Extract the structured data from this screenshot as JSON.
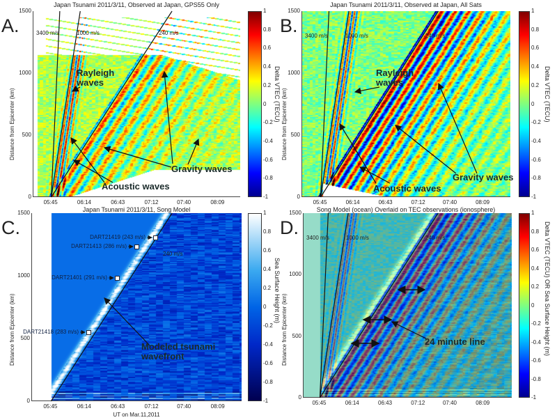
{
  "figure": {
    "chart_data": [
      {
        "type": "heatmap",
        "letter": "A.",
        "title": "Japan Tsunami 2011/3/11, Observed at Japan, GPS55 Only",
        "xlabel": "",
        "ylabel": "Distance from Epicenter (km)",
        "x_ticks": [
          "05:45",
          "06:14",
          "06:43",
          "07:12",
          "07:40",
          "08:09"
        ],
        "xlim": [
          "05:29",
          "08:28"
        ],
        "y_ticks": [
          0,
          500,
          1000,
          1500
        ],
        "ylim": [
          0,
          1500
        ],
        "colorbar": {
          "label": "Delta VTEC (TECU)",
          "colormap": "jet",
          "range": [
            -1,
            1
          ],
          "ticks": [
            "1",
            "0.8",
            "0.6",
            "0.4",
            "0.2",
            "0",
            "-0.2",
            "-0.4",
            "-0.6",
            "-0.8",
            "-1"
          ]
        },
        "velocity_lines": [
          "3400 m/s",
          "1000 m/s",
          "240 m/s"
        ],
        "annotations": [
          "Rayleigh\nwaves",
          "Acoustic waves",
          "Gravity waves"
        ]
      },
      {
        "type": "heatmap",
        "letter": "B.",
        "title": "Japan Tsunami 2011/3/11, Observed at Japan, All Sats",
        "xlabel": "",
        "ylabel": "Distance from Epicenter (km)",
        "x_ticks": [
          "05:45",
          "06:14",
          "06:43",
          "07:12",
          "07:40",
          "08:09"
        ],
        "xlim": [
          "05:28",
          "08:33"
        ],
        "y_ticks": [
          0,
          500,
          1000,
          1500
        ],
        "ylim": [
          0,
          1500
        ],
        "colorbar": {
          "label": "Delta VTEC (TECU)",
          "colormap": "jet",
          "range": [
            -1,
            1
          ],
          "ticks": [
            "1",
            "0.8",
            "0.6",
            "0.4",
            "0.2",
            "0",
            "-0.2",
            "-0.4",
            "-0.6",
            "-0.8",
            "-1"
          ]
        },
        "velocity_lines": [
          "3400 m/s",
          "1000 m/s",
          "240 m/s"
        ],
        "annotations": [
          "Rayleigh\nwaves",
          "Acoustic waves",
          "Gravity waves"
        ]
      },
      {
        "type": "heatmap",
        "letter": "C.",
        "title": "Japan Tsunami 2011/3/11, Song Model",
        "xlabel": "UT on Mar.11,2011",
        "ylabel": "Distance from Epicenter (km)",
        "x_ticks": [
          "05:45",
          "06:14",
          "06:43",
          "07:12",
          "07:40",
          "08:09"
        ],
        "xlim": [
          "05:28",
          "08:29"
        ],
        "y_ticks": [
          0,
          500,
          1000,
          1500
        ],
        "ylim": [
          0,
          1500
        ],
        "colorbar": {
          "label": "Sea Surface Height (m)",
          "colormap": "blues",
          "range": [
            -1,
            1
          ],
          "ticks": [
            "1",
            "0.8",
            "0.6",
            "0.4",
            "0.2",
            "0",
            "-0.2",
            "-0.4",
            "-0.6",
            "-0.8",
            "-1"
          ]
        },
        "velocity_lines": [
          "240 m/s"
        ],
        "dart_stations": [
          {
            "label": "DART21419 (243 m/s)",
            "distance_km": 1270
          },
          {
            "label": "DART21413 (286 m/s)",
            "distance_km": 1225
          },
          {
            "label": "DART21401 (291 m/s)",
            "distance_km": 985
          },
          {
            "label": "DART21418 (283 m/s)",
            "distance_km": 530
          }
        ],
        "annotations": [
          "Modeled tsunami\nwavefront"
        ]
      },
      {
        "type": "heatmap",
        "letter": "D.",
        "title": "Song Model (ocean) Overlaid on TEC observations (ionosphere)",
        "xlabel": "",
        "ylabel": "Distance from Epicenter (km)",
        "x_ticks": [
          "05:45",
          "06:14",
          "06:43",
          "07:12",
          "07:40",
          "08:09"
        ],
        "xlim": [
          "05:30",
          "08:34"
        ],
        "y_ticks": [
          0,
          500,
          1000,
          1500
        ],
        "ylim": [
          0,
          1500
        ],
        "colorbar": {
          "label": "Delta VTEC (TECU) OR Sea Surface Height (m)",
          "colormap": "jet",
          "range": [
            -1,
            1
          ],
          "ticks": [
            "1",
            "0.8",
            "0.6",
            "0.4",
            "0.2",
            "0",
            "-0.2",
            "-0.4",
            "-0.6",
            "-0.8",
            "-1"
          ]
        },
        "velocity_lines": [
          "3400 m/s",
          "1000 m/s",
          "240 m/s"
        ],
        "annotations": [
          "24 minute line"
        ]
      }
    ]
  }
}
